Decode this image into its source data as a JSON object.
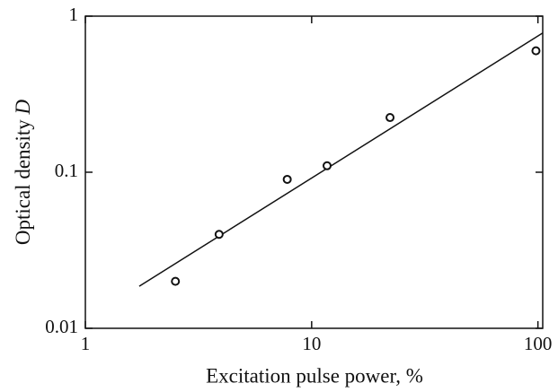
{
  "chart_data": {
    "type": "scatter",
    "xlabel": "Excitation pulse power, %",
    "ylabel": "Optical density",
    "ylabel_symbol": "D",
    "xscale": "log",
    "yscale": "log",
    "xlim": [
      1,
      105
    ],
    "ylim": [
      0.01,
      1
    ],
    "xticks": [
      1,
      10,
      100
    ],
    "yticks": [
      0.01,
      0.1,
      1
    ],
    "points": {
      "x": [
        2.5,
        3.9,
        7.8,
        11.7,
        22.2,
        98
      ],
      "y": [
        0.02,
        0.04,
        0.09,
        0.11,
        0.224,
        0.6
      ],
      "color": "#111"
    },
    "fit": {
      "x": [
        1.73,
        105
      ],
      "y": [
        0.0186,
        0.78
      ],
      "color": "#111"
    }
  }
}
